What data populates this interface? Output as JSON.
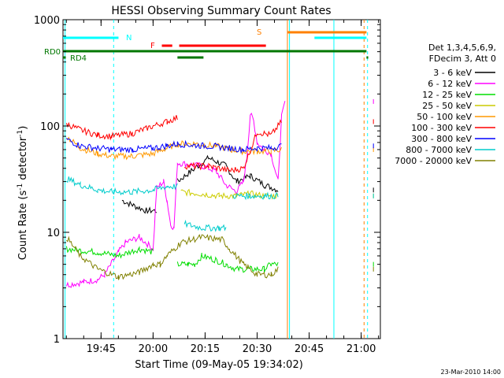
{
  "chart_data": {
    "type": "line",
    "title": "HESSI Observing Summary Count Rates",
    "xlabel": "Start Time (09-May-05 19:34:02)",
    "ylabel_main": "Count Rate (s",
    "ylabel_sup1": "-1",
    "ylabel_mid": " detector",
    "ylabel_sup2": "-1",
    "ylabel_end": ")",
    "y_scale": "log",
    "ylim": [
      1,
      1000
    ],
    "xlim_minutes": [
      0,
      91.5
    ],
    "x_ticks": [
      {
        "label": "19:45",
        "minute": 10.97
      },
      {
        "label": "20:00",
        "minute": 25.97
      },
      {
        "label": "20:15",
        "minute": 40.97
      },
      {
        "label": "20:30",
        "minute": 55.97
      },
      {
        "label": "20:45",
        "minute": 70.97
      },
      {
        "label": "21:00",
        "minute": 85.97
      }
    ],
    "y_ticks": [
      {
        "label": "1",
        "value": 1
      },
      {
        "label": "10",
        "value": 10
      },
      {
        "label": "100",
        "value": 100
      },
      {
        "label": "1000",
        "value": 1000
      }
    ],
    "legend_header": [
      "Det 1,3,4,5,6,9,",
      "FDecim 3, Att 0"
    ],
    "legend_position": "right",
    "series": [
      {
        "name": "3 - 6 keV",
        "color": "#000000",
        "points": [
          [
            16,
            null
          ],
          [
            17,
            20
          ],
          [
            20,
            18
          ],
          [
            24,
            16
          ],
          [
            27,
            16
          ],
          [
            28,
            null
          ],
          [
            33,
            30
          ],
          [
            38,
            40
          ],
          [
            42,
            50
          ],
          [
            47,
            42
          ],
          [
            50,
            30
          ],
          [
            54,
            34
          ],
          [
            58,
            28
          ],
          [
            62,
            25
          ],
          [
            63,
            null
          ]
        ]
      },
      {
        "name": "6 - 12 keV",
        "color": "#ff00ff",
        "points": [
          [
            1,
            3.2
          ],
          [
            6,
            3.4
          ],
          [
            10,
            3.6
          ],
          [
            12,
            4
          ],
          [
            16,
            6.5
          ],
          [
            18,
            8
          ],
          [
            22,
            9
          ],
          [
            26,
            7
          ],
          [
            27,
            26
          ],
          [
            29,
            30
          ],
          [
            30,
            20
          ],
          [
            31,
            12
          ],
          [
            32,
            11
          ],
          [
            33,
            45
          ],
          [
            40,
            42
          ],
          [
            44,
            38
          ],
          [
            47,
            28
          ],
          [
            50,
            24
          ],
          [
            52,
            30
          ],
          [
            53,
            50
          ],
          [
            54,
            130
          ],
          [
            55,
            110
          ],
          [
            56,
            70
          ],
          [
            58,
            60
          ],
          [
            60,
            55
          ],
          [
            62,
            30
          ],
          [
            63,
            120
          ],
          [
            64,
            170
          ],
          [
            65,
            null
          ]
        ]
      },
      {
        "name": "12 - 25 keV",
        "color": "#00dd00",
        "points": [
          [
            1,
            7
          ],
          [
            10,
            6.5
          ],
          [
            16,
            6
          ],
          [
            22,
            7
          ],
          [
            26,
            6.5
          ],
          [
            28,
            null
          ],
          [
            33,
            5
          ],
          [
            36,
            5
          ],
          [
            38,
            5
          ],
          [
            40,
            6
          ],
          [
            44,
            5.5
          ],
          [
            47,
            5
          ],
          [
            50,
            4.5
          ],
          [
            54,
            4.5
          ],
          [
            58,
            4.5
          ],
          [
            60,
            5
          ],
          [
            62,
            5
          ],
          [
            63,
            null
          ]
        ]
      },
      {
        "name": "25 - 50 keV",
        "color": "#cccc00",
        "points": [
          [
            33,
            null
          ],
          [
            34,
            24
          ],
          [
            40,
            23
          ],
          [
            45,
            22
          ],
          [
            50,
            22
          ],
          [
            54,
            23
          ],
          [
            58,
            22
          ],
          [
            62,
            22
          ],
          [
            63,
            null
          ]
        ]
      },
      {
        "name": "50 - 100 keV",
        "color": "#ff9900",
        "points": [
          [
            1,
            80
          ],
          [
            5,
            62
          ],
          [
            10,
            55
          ],
          [
            14,
            52
          ],
          [
            20,
            52
          ],
          [
            26,
            55
          ],
          [
            30,
            62
          ],
          [
            33,
            68
          ],
          [
            38,
            68
          ],
          [
            44,
            65
          ],
          [
            48,
            60
          ],
          [
            52,
            58
          ],
          [
            56,
            58
          ],
          [
            60,
            58
          ],
          [
            63,
            60
          ],
          [
            64,
            null
          ]
        ]
      },
      {
        "name": "100 - 300 keV",
        "color": "#ff0000",
        "points": [
          [
            1,
            105
          ],
          [
            5,
            92
          ],
          [
            10,
            82
          ],
          [
            14,
            80
          ],
          [
            20,
            85
          ],
          [
            24,
            95
          ],
          [
            30,
            110
          ],
          [
            33,
            120
          ],
          [
            34,
            null
          ],
          [
            35,
            42
          ],
          [
            42,
            42
          ],
          [
            48,
            38
          ],
          [
            52,
            40
          ],
          [
            56,
            88
          ],
          [
            60,
            82
          ],
          [
            63,
            110
          ],
          [
            64,
            null
          ]
        ]
      },
      {
        "name": "300 - 800 keV",
        "color": "#0000ff",
        "points": [
          [
            1,
            75
          ],
          [
            5,
            65
          ],
          [
            10,
            62
          ],
          [
            14,
            60
          ],
          [
            20,
            60
          ],
          [
            26,
            62
          ],
          [
            30,
            65
          ],
          [
            33,
            68
          ],
          [
            38,
            66
          ],
          [
            44,
            64
          ],
          [
            48,
            62
          ],
          [
            52,
            60
          ],
          [
            56,
            62
          ],
          [
            60,
            62
          ],
          [
            63,
            65
          ],
          [
            64,
            null
          ]
        ]
      },
      {
        "name": "800 - 7000 keV",
        "color": "#00cccc",
        "points": [
          [
            1,
            32
          ],
          [
            5,
            28
          ],
          [
            10,
            25
          ],
          [
            14,
            24
          ],
          [
            20,
            24
          ],
          [
            26,
            25
          ],
          [
            30,
            27
          ],
          [
            33,
            27
          ],
          [
            34,
            null
          ],
          [
            35,
            12
          ],
          [
            40,
            11
          ],
          [
            45,
            11
          ],
          [
            47,
            11
          ],
          [
            48,
            null
          ],
          [
            49,
            22
          ],
          [
            54,
            22
          ],
          [
            58,
            22
          ],
          [
            62,
            22
          ],
          [
            63,
            null
          ]
        ]
      },
      {
        "name": "7000 - 20000 keV",
        "color": "#808000",
        "points": [
          [
            1,
            9
          ],
          [
            5,
            6
          ],
          [
            10,
            4.5
          ],
          [
            16,
            3.8
          ],
          [
            22,
            4.2
          ],
          [
            26,
            5
          ],
          [
            28,
            5
          ],
          [
            30,
            6
          ],
          [
            34,
            8
          ],
          [
            40,
            9
          ],
          [
            46,
            8.5
          ],
          [
            48,
            7
          ],
          [
            52,
            5
          ],
          [
            56,
            4
          ],
          [
            60,
            4
          ],
          [
            62,
            4.5
          ],
          [
            63,
            null
          ]
        ]
      }
    ],
    "flag_rows": [
      {
        "label": "RD0",
        "color": "#007700"
      },
      {
        "label": "RD4",
        "color": "#007700"
      },
      {
        "label": "N",
        "color": "#00ffff"
      },
      {
        "label": "F",
        "color": "#ff0000"
      },
      {
        "label": "S",
        "color": "#ff8000"
      }
    ],
    "footer_date": "23-Mar-2010 14:00"
  }
}
